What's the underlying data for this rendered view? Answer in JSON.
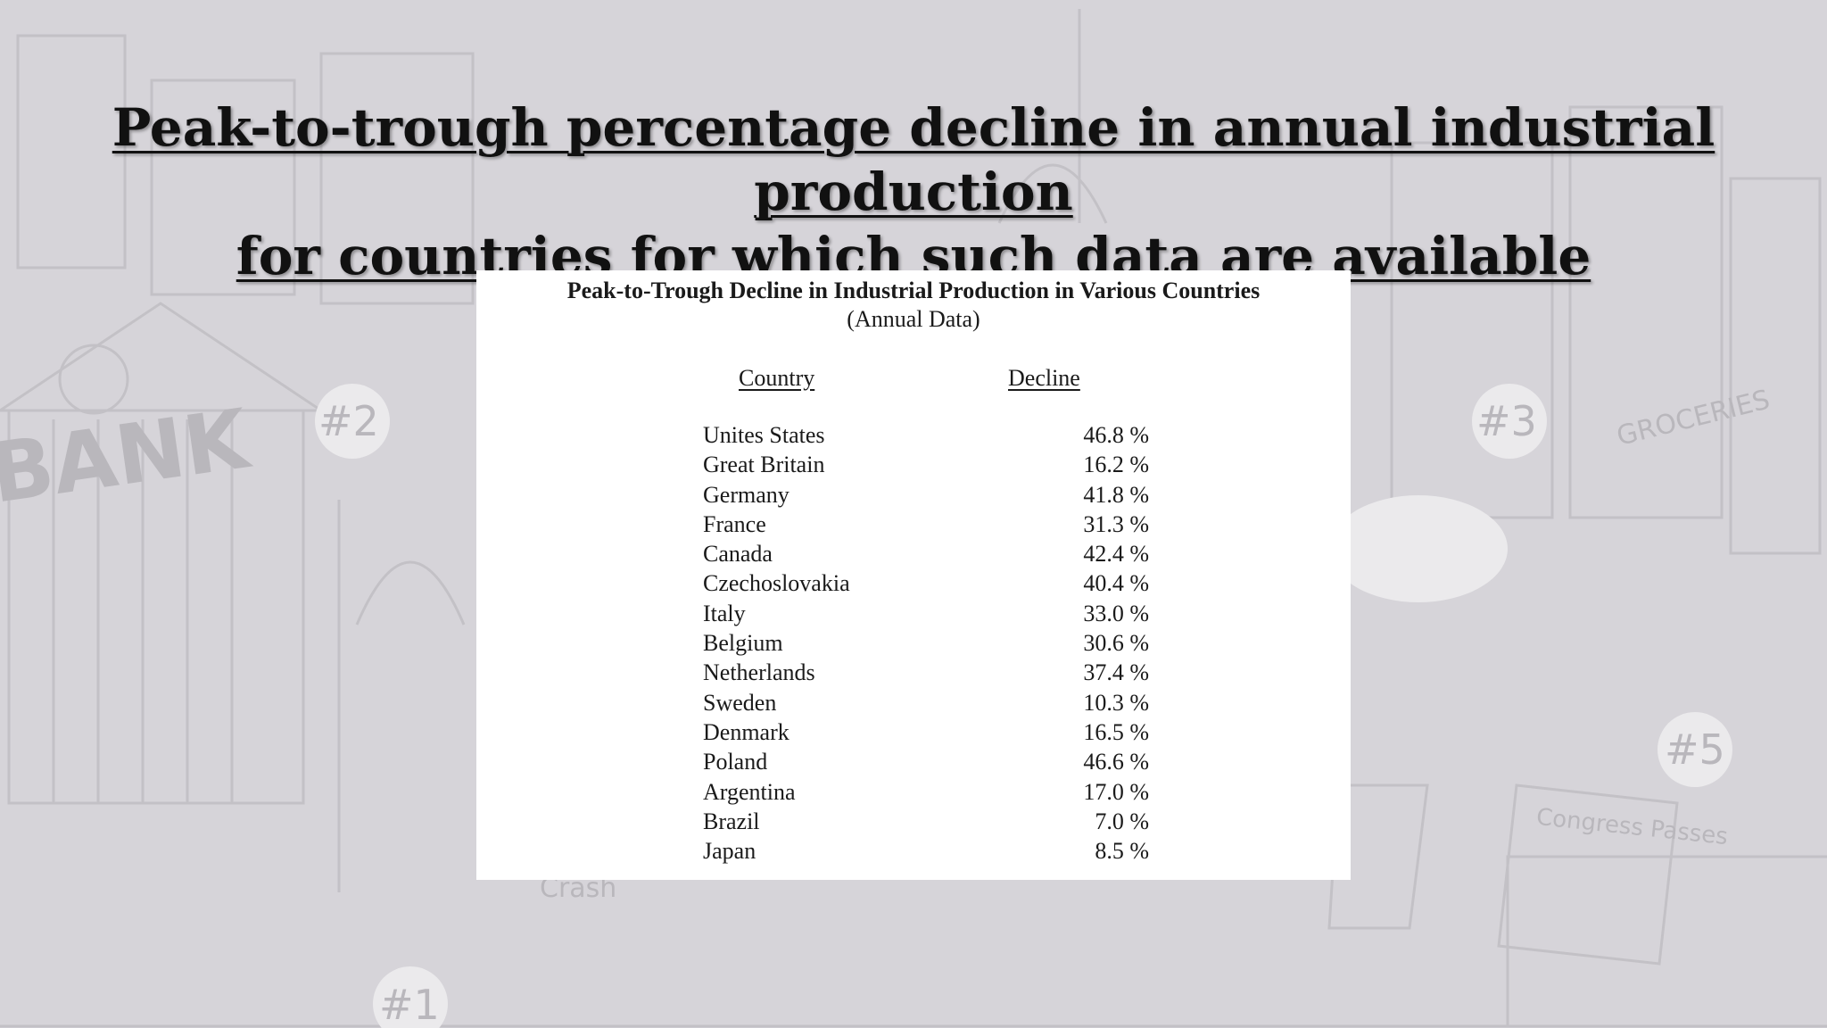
{
  "slide": {
    "title_line1": "Peak-to-trough percentage decline in annual industrial production",
    "title_line2": "for countries for which such data are available"
  },
  "background": {
    "labels": [
      "BANK",
      "#2",
      "#3",
      "#1",
      "#5",
      "GROCERIES",
      "Crash",
      "Congress Passes Protectionist Tariffs"
    ]
  },
  "table": {
    "title": "Peak-to-Trough Decline in Industrial Production in Various Countries",
    "subtitle": "(Annual Data)",
    "headers": {
      "country": "Country",
      "decline": "Decline"
    },
    "rows": [
      {
        "country": "Unites States",
        "decline": "46.8 %"
      },
      {
        "country": "Great Britain",
        "decline": "16.2 %"
      },
      {
        "country": "Germany",
        "decline": "41.8 %"
      },
      {
        "country": "France",
        "decline": "31.3 %"
      },
      {
        "country": "Canada",
        "decline": "42.4 %"
      },
      {
        "country": "Czechoslovakia",
        "decline": "40.4 %"
      },
      {
        "country": "Italy",
        "decline": "33.0 %"
      },
      {
        "country": "Belgium",
        "decline": "30.6 %"
      },
      {
        "country": "Netherlands",
        "decline": "37.4 %"
      },
      {
        "country": "Sweden",
        "decline": "10.3 %"
      },
      {
        "country": "Denmark",
        "decline": "16.5 %"
      },
      {
        "country": "Poland",
        "decline": "46.6 %"
      },
      {
        "country": "Argentina",
        "decline": "17.0 %"
      },
      {
        "country": "Brazil",
        "decline": "7.0 %"
      },
      {
        "country": "Japan",
        "decline": "8.5 %"
      }
    ]
  }
}
